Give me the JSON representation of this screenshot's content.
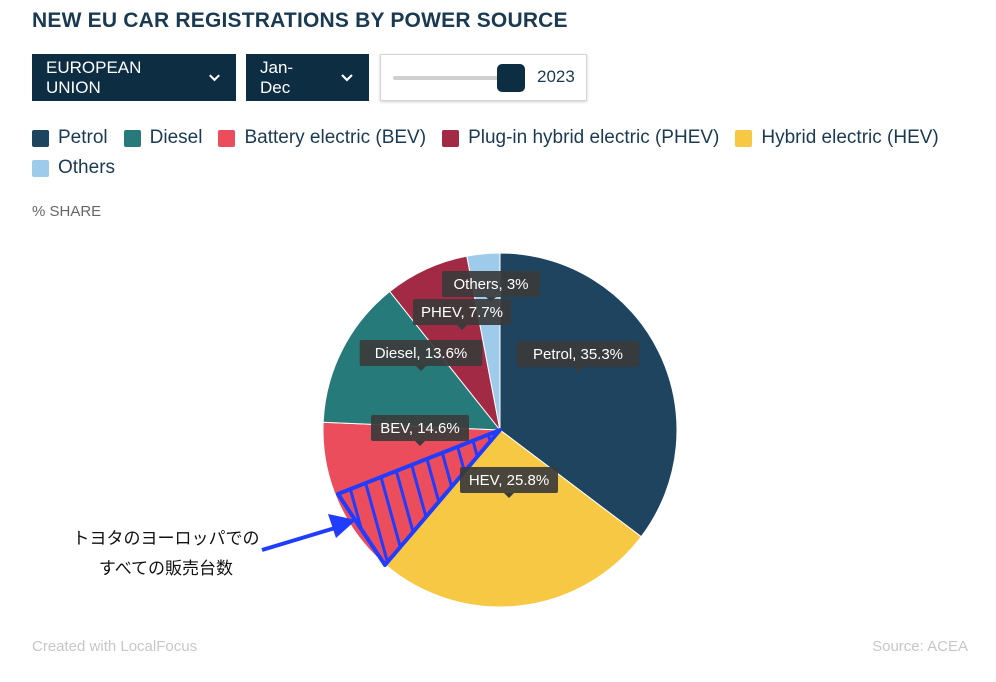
{
  "title": "NEW EU CAR REGISTRATIONS BY POWER SOURCE",
  "controls": {
    "region": "EUROPEAN UNION",
    "period": "Jan-Dec",
    "year": "2023",
    "year_fraction": 1.0,
    "chevron_icon": "chevron-down-icon"
  },
  "y_unit": "% SHARE",
  "footer": {
    "credit": "Created with LocalFocus",
    "source": "Source: ACEA"
  },
  "annotation": {
    "line1": "トヨタのヨーロッパでの",
    "line2": "すべての販売台数",
    "color": "#1f3cff",
    "arrow_icon": "arrow-icon"
  },
  "chart_data": {
    "type": "pie",
    "series": [
      {
        "name": "Petrol",
        "value": 35.3,
        "label": "Petrol, 35.3%",
        "color": "#1e4460"
      },
      {
        "name": "Hybrid electric (HEV)",
        "value": 25.8,
        "label": "HEV, 25.8%",
        "color": "#f7c844"
      },
      {
        "name": "Battery electric (BEV)",
        "value": 14.6,
        "label": "BEV, 14.6%",
        "color": "#ec4d5c"
      },
      {
        "name": "Diesel",
        "value": 13.6,
        "label": "Diesel, 13.6%",
        "color": "#267a7a"
      },
      {
        "name": "Plug-in hybrid electric (PHEV)",
        "value": 7.7,
        "label": "PHEV, 7.7%",
        "color": "#a22a44"
      },
      {
        "name": "Others",
        "value": 3,
        "label": "Others, 3%",
        "color": "#9ecbea"
      }
    ],
    "legend": [
      {
        "name": "Petrol",
        "color": "#1e4460"
      },
      {
        "name": "Diesel",
        "color": "#267a7a"
      },
      {
        "name": "Battery electric (BEV)",
        "color": "#ec4d5c"
      },
      {
        "name": "Plug-in hybrid electric (PHEV)",
        "color": "#a22a44"
      },
      {
        "name": "Hybrid electric (HEV)",
        "color": "#f7c844"
      },
      {
        "name": "Others",
        "color": "#9ecbea"
      }
    ],
    "legend_position": "top",
    "highlighted_slice": "Battery electric (BEV)"
  }
}
